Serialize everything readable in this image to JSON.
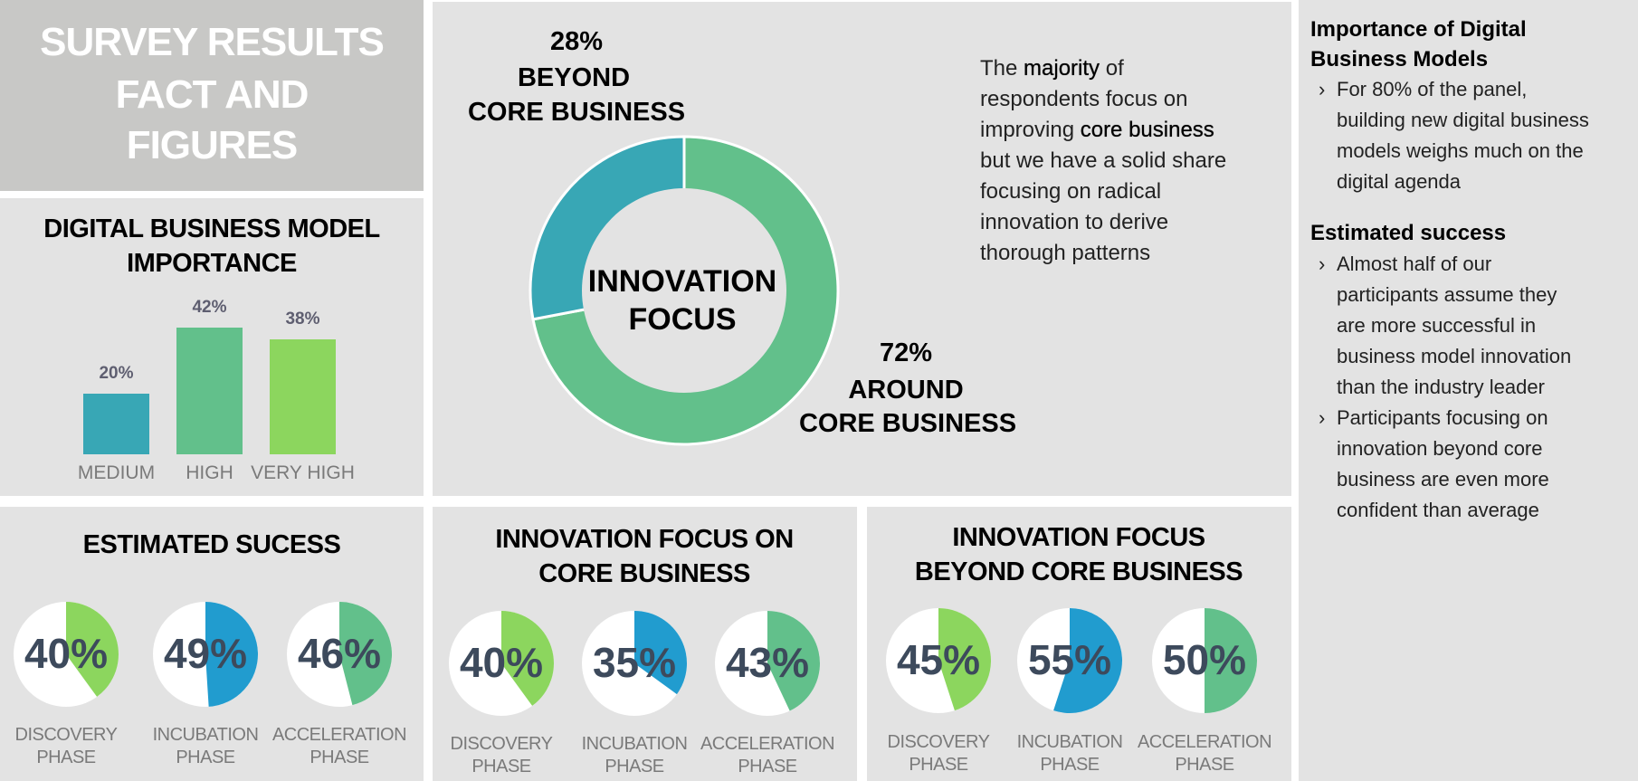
{
  "title": {
    "lines": [
      "SURVEY RESULTS",
      "FACT AND",
      "FIGURES"
    ]
  },
  "colors": {
    "panel": "#e3e3e3",
    "title_box": "#c8c8c6",
    "teal": "#38a7b5",
    "green": "#62c08b",
    "light_green": "#8cd65e",
    "blue": "#219ccf",
    "pct_text": "#3d4a5c"
  },
  "bar_panel": {
    "title_lines": [
      "DIGITAL BUSINESS MODEL",
      "IMPORTANCE"
    ]
  },
  "donut_panel": {
    "beyond": {
      "pct": "28%",
      "line1": "BEYOND",
      "line2": "CORE BUSINESS"
    },
    "around": {
      "pct": "72%",
      "line1": "AROUND",
      "line2": "CORE BUSINESS"
    },
    "center_lines": [
      "INNOVATION",
      "FOCUS"
    ],
    "paragraph": {
      "l1a": "The ",
      "l1b": "majority",
      "l1c": " of",
      "l2": "respondents focus on",
      "l3a": "improving ",
      "l3b": "core business",
      "l4": "but we have a solid share",
      "l5": "focusing on radical",
      "l6": "innovation to derive",
      "l7": "thorough patterns"
    }
  },
  "right_panel": {
    "heading1_lines": [
      "Importance of Digital",
      "Business Models"
    ],
    "bullets1": [
      [
        "For 80% of the panel,",
        "building new digital business",
        "models weighs much on the",
        "digital agenda"
      ]
    ],
    "heading2": "Estimated success",
    "bullets2": [
      [
        "Almost half of our",
        "participants assume they",
        "are more successful in",
        "business model innovation",
        "than the industry leader"
      ],
      [
        "Participants focusing on",
        "innovation beyond core",
        "business are even more",
        "confident than average"
      ]
    ],
    "bullet_glyph": "›"
  },
  "pie_panels": [
    {
      "title_lines": [
        "ESTIMATED SUCESS"
      ]
    },
    {
      "title_lines": [
        "INNOVATION FOCUS ON",
        "CORE BUSINESS"
      ]
    },
    {
      "title_lines": [
        "INNOVATION FOCUS",
        "BEYOND CORE BUSINESS"
      ]
    }
  ],
  "chart_data": [
    {
      "type": "bar",
      "title": "DIGITAL BUSINESS MODEL IMPORTANCE",
      "categories": [
        "MEDIUM",
        "HIGH",
        "VERY HIGH"
      ],
      "values": [
        20,
        42,
        38
      ],
      "labels": [
        "20%",
        "42%",
        "38%"
      ],
      "colors": [
        "#38a7b5",
        "#62c08b",
        "#8cd65e"
      ],
      "grid": false
    },
    {
      "type": "pie",
      "title": "INNOVATION FOCUS",
      "slices": [
        {
          "label": "BEYOND CORE BUSINESS",
          "value": 28,
          "color": "#38a7b5"
        },
        {
          "label": "AROUND CORE BUSINESS",
          "value": 72,
          "color": "#62c08b"
        }
      ],
      "donut": true
    },
    {
      "type": "pie",
      "title": "ESTIMATED SUCESS",
      "items": [
        {
          "label1": "DISCOVERY",
          "label2": "PHASE",
          "value": 40,
          "text": "40%",
          "color": "#8cd65e"
        },
        {
          "label1": "INCUBATION",
          "label2": "PHASE",
          "value": 49,
          "text": "49%",
          "color": "#219ccf"
        },
        {
          "label1": "ACCELERATION",
          "label2": "PHASE",
          "value": 46,
          "text": "46%",
          "color": "#62c08b"
        }
      ]
    },
    {
      "type": "pie",
      "title": "INNOVATION FOCUS ON CORE BUSINESS",
      "items": [
        {
          "label1": "DISCOVERY",
          "label2": "PHASE",
          "value": 40,
          "text": "40%",
          "color": "#8cd65e"
        },
        {
          "label1": "INCUBATION",
          "label2": "PHASE",
          "value": 35,
          "text": "35%",
          "color": "#219ccf"
        },
        {
          "label1": "ACCELERATION",
          "label2": "PHASE",
          "value": 43,
          "text": "43%",
          "color": "#62c08b"
        }
      ]
    },
    {
      "type": "pie",
      "title": "INNOVATION FOCUS BEYOND CORE BUSINESS",
      "items": [
        {
          "label1": "DISCOVERY",
          "label2": "PHASE",
          "value": 45,
          "text": "45%",
          "color": "#8cd65e"
        },
        {
          "label1": "INCUBATION",
          "label2": "PHASE",
          "value": 55,
          "text": "55%",
          "color": "#219ccf"
        },
        {
          "label1": "ACCELERATION",
          "label2": "PHASE",
          "value": 50,
          "text": "50%",
          "color": "#62c08b"
        }
      ]
    }
  ]
}
